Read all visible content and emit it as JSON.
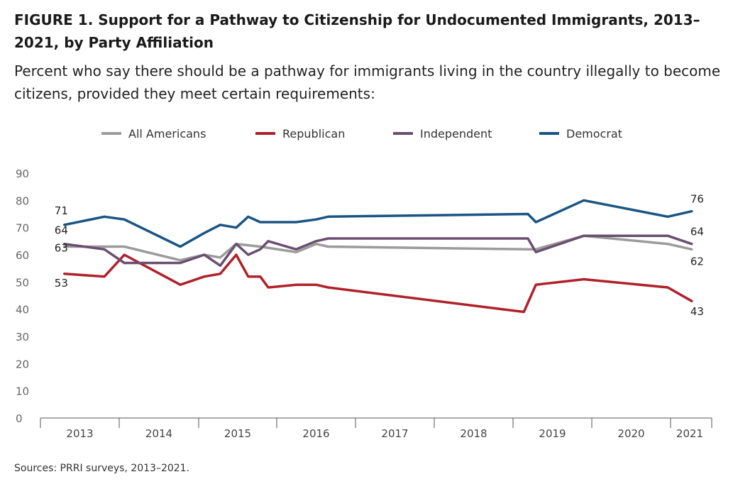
{
  "figure": {
    "title": "FIGURE 1. Support for a Pathway to Citizenship for Undocumented Immigrants, 2013–2021, by Party Affiliation",
    "subtitle": "Percent who say there should be a pathway for immigrants living in the country illegally to become citizens, provided they meet certain requirements:",
    "source": "Sources: PRRI surveys, 2013–2021."
  },
  "chart_data": {
    "type": "line",
    "title": "FIGURE 1. Support for a Pathway to Citizenship for Undocumented Immigrants, 2013–2021, by Party Affiliation",
    "subtitle": "Percent who say there should be a pathway for immigrants living in the country illegally to become citizens, provided they meet certain requirements:",
    "xlabel": "",
    "ylabel": "",
    "ylim": [
      0,
      90
    ],
    "yticks": [
      0,
      10,
      20,
      30,
      40,
      50,
      60,
      70,
      80,
      90
    ],
    "xlim": [
      2013.0,
      2021.0
    ],
    "xtick_labels": [
      "2013",
      "2014",
      "2015",
      "2016",
      "2017",
      "2018",
      "2019",
      "2020",
      "2021"
    ],
    "grid": false,
    "legend": "top",
    "series": [
      {
        "name": "All Americans",
        "color": "#9b9b9b",
        "x": [
          2013.1,
          2013.6,
          2013.85,
          2014.55,
          2014.85,
          2015.05,
          2015.25,
          2015.55,
          2016.0,
          2016.25,
          2016.4,
          2018.9,
          2019.0,
          2019.6,
          2020.65,
          2020.95
        ],
        "y": [
          63,
          63,
          63,
          58,
          60,
          59,
          64,
          63,
          61,
          64,
          63,
          62,
          62,
          67,
          64,
          62
        ],
        "start_label": "63",
        "end_label": "62"
      },
      {
        "name": "Republican",
        "color": "#b0212a",
        "x": [
          2013.1,
          2013.6,
          2013.85,
          2014.55,
          2014.85,
          2015.05,
          2015.25,
          2015.4,
          2015.55,
          2015.65,
          2016.0,
          2016.25,
          2016.4,
          2018.85,
          2019.0,
          2019.6,
          2020.65,
          2020.95
        ],
        "y": [
          53,
          52,
          60,
          49,
          52,
          53,
          60,
          52,
          52,
          48,
          49,
          49,
          48,
          39,
          49,
          51,
          48,
          43
        ],
        "start_label": "53",
        "end_label": "43"
      },
      {
        "name": "Independent",
        "color": "#6b4e71",
        "x": [
          2013.1,
          2013.6,
          2013.85,
          2014.55,
          2014.85,
          2015.05,
          2015.25,
          2015.4,
          2015.55,
          2015.65,
          2016.0,
          2016.25,
          2016.4,
          2018.9,
          2019.0,
          2019.6,
          2020.65,
          2020.95
        ],
        "y": [
          64,
          62,
          57,
          57,
          60,
          56,
          64,
          60,
          62,
          65,
          62,
          65,
          66,
          66,
          61,
          67,
          67,
          64
        ],
        "start_label": "64",
        "end_label": "64"
      },
      {
        "name": "Democrat",
        "color": "#1a5583",
        "x": [
          2013.1,
          2013.6,
          2013.85,
          2014.55,
          2014.85,
          2015.05,
          2015.25,
          2015.4,
          2015.55,
          2016.0,
          2016.25,
          2016.4,
          2018.9,
          2019.0,
          2019.6,
          2020.65,
          2020.95
        ],
        "y": [
          71,
          74,
          73,
          63,
          68,
          71,
          70,
          74,
          72,
          72,
          73,
          74,
          75,
          72,
          80,
          74,
          76
        ],
        "start_label": "71",
        "end_label": "76"
      }
    ]
  }
}
